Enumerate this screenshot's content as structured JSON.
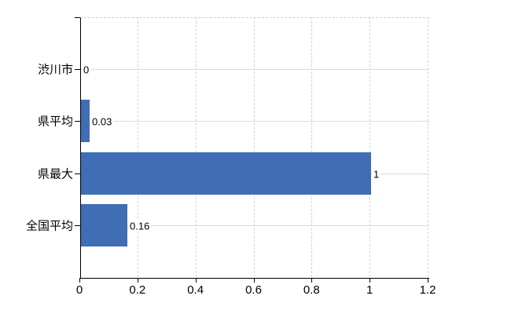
{
  "chart_data": {
    "type": "bar",
    "orientation": "horizontal",
    "title": "",
    "xlabel": "",
    "ylabel": "",
    "legend": "none",
    "categories": [
      "渋川市",
      "県平均",
      "県最大",
      "全国平均"
    ],
    "values": [
      0,
      0.03,
      1,
      0.16
    ],
    "value_labels": [
      "0",
      "0.03",
      "1",
      "0.16"
    ],
    "x_axis": {
      "min": 0,
      "max": 1.2,
      "ticks": [
        0,
        0.2,
        0.4,
        0.6,
        0.8,
        1,
        1.2
      ],
      "tick_labels": [
        "0",
        "0.2",
        "0.4",
        "0.6",
        "0.8",
        "1",
        "1.2"
      ]
    },
    "grid": {
      "vertical_style": "dashed",
      "horizontal_style": "solid"
    },
    "colors": {
      "bar": "#3f6eb4",
      "axis": "#000000",
      "vertical_gridline": "#d4d4d4",
      "horizontal_gridline": "#d9ded9",
      "plot_top_border": "#cfcfcf",
      "text": "#000000",
      "background": "#ffffff"
    }
  }
}
